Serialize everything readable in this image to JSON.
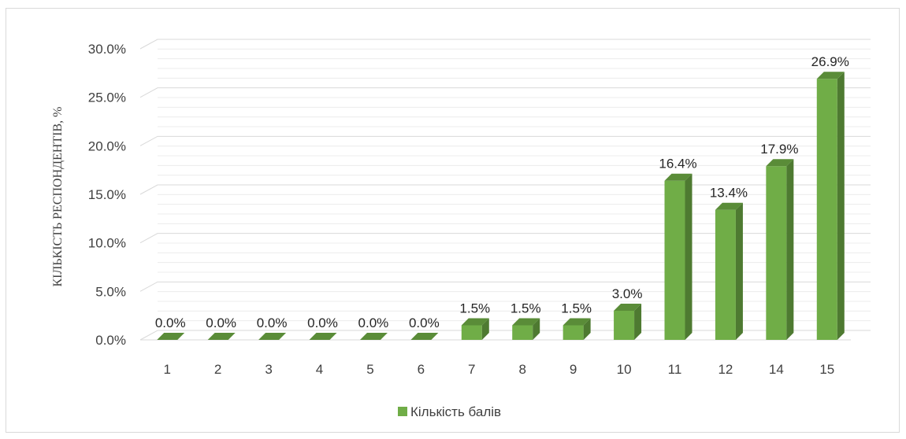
{
  "chart_data": {
    "type": "bar",
    "style": "3d-column",
    "categories": [
      "1",
      "2",
      "3",
      "4",
      "5",
      "6",
      "7",
      "8",
      "9",
      "10",
      "11",
      "12",
      "14",
      "15"
    ],
    "series": [
      {
        "name": "Кількість балів",
        "values": [
          0.0,
          0.0,
          0.0,
          0.0,
          0.0,
          0.0,
          1.5,
          1.5,
          1.5,
          3.0,
          16.4,
          13.4,
          17.9,
          26.9
        ],
        "data_labels": [
          "0.0%",
          "0.0%",
          "0.0%",
          "0.0%",
          "0.0%",
          "0.0%",
          "1.5%",
          "1.5%",
          "1.5%",
          "3.0%",
          "16.4%",
          "13.4%",
          "17.9%",
          "26.9%"
        ]
      }
    ],
    "ylabel": "КІЛЬКІСТЬ РЕСПОНДЕНТІВ, %",
    "xlabel": "",
    "ylim": [
      0,
      30
    ],
    "yticks": [
      "0.0%",
      "5.0%",
      "10.0%",
      "15.0%",
      "20.0%",
      "25.0%",
      "30.0%"
    ],
    "grid": true,
    "legend_position": "bottom",
    "colors": {
      "bar_front": "#70ad47",
      "bar_side": "#4e7a31",
      "bar_top": "#5a8c38",
      "grid": "#d9d9d9"
    }
  }
}
